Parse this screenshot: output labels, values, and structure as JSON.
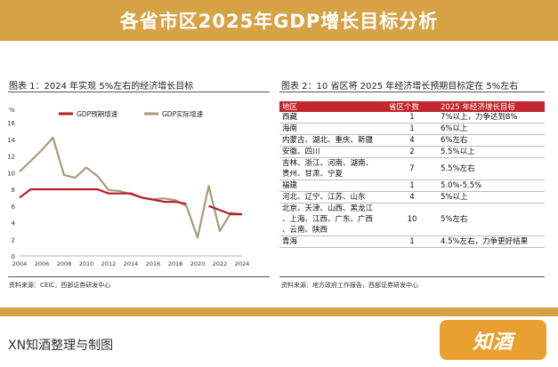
{
  "banner": {
    "title": "各省市区2025年GDP增长目标分析"
  },
  "fig1": {
    "title": "图表 1：2024 年实现 5%左右的经济增长目标",
    "source": "资料来源：CEIC，西部证券研发中心"
  },
  "fig2": {
    "title": "图表 2：10 省区将 2025 年经济增长预期目标定在 5%左右",
    "source": "资料来源：地方政府工作报告，西部证券研发中心"
  },
  "chart_data": {
    "type": "line",
    "title": "",
    "ylabel": "%",
    "xlabel": "",
    "xlim": [
      2004,
      2024
    ],
    "ylim": [
      0,
      16
    ],
    "xticks": [
      "2004",
      "2006",
      "2008",
      "2010",
      "2012",
      "2014",
      "2016",
      "2018",
      "2020",
      "2022",
      "2024"
    ],
    "yticks": [
      "0",
      "2",
      "4",
      "6",
      "8",
      "10",
      "12",
      "14",
      "16"
    ],
    "legend_position": "top",
    "series": [
      {
        "name": "GDP预期增速",
        "color": "#b81c25",
        "x": [
          2004,
          2005,
          2006,
          2007,
          2008,
          2009,
          2010,
          2011,
          2012,
          2013,
          2014,
          2015,
          2016,
          2017,
          2018,
          2019,
          2020,
          2021,
          2022,
          2023,
          2024
        ],
        "values": [
          7,
          8,
          8,
          8,
          8,
          8,
          8,
          8,
          7.5,
          7.5,
          7.5,
          7,
          6.75,
          6.5,
          6.5,
          6.25,
          null,
          6,
          5.5,
          5,
          5
        ]
      },
      {
        "name": "GDP实际增速",
        "color": "#a89a7c",
        "x": [
          2004,
          2005,
          2006,
          2007,
          2008,
          2009,
          2010,
          2011,
          2012,
          2013,
          2014,
          2015,
          2016,
          2017,
          2018,
          2019,
          2020,
          2021,
          2022,
          2023,
          2024
        ],
        "values": [
          10.1,
          11.4,
          12.7,
          14.2,
          9.7,
          9.4,
          10.6,
          9.6,
          7.9,
          7.8,
          7.4,
          7.0,
          6.8,
          6.9,
          6.7,
          6.0,
          2.2,
          8.4,
          3.0,
          5.2,
          5.0
        ]
      }
    ]
  },
  "table": {
    "headers": [
      "地区",
      "省区个数",
      "2025 年经济增长目标"
    ],
    "rows": [
      [
        "西藏",
        "1",
        "7%以上，力争达到8%"
      ],
      [
        "海南",
        "1",
        "6%以上"
      ],
      [
        "内蒙古、湖北、重庆、新疆",
        "4",
        "6%左右"
      ],
      [
        "安徽、四川",
        "2",
        "5.5%以上"
      ],
      [
        "吉林、浙江、河南、湖南、\n贵州、甘肃、宁夏",
        "7",
        "5.5%左右"
      ],
      [
        "福建",
        "1",
        "5.0%-5.5%"
      ],
      [
        "河北、辽宁、江苏、山东",
        "4",
        "5%以上"
      ],
      [
        "北京、天津、山西、黑龙江\n、上海、江西、广东、广西\n、云南、陕西",
        "10",
        "5%左右"
      ],
      [
        "青海",
        "1",
        "4.5%左右，力争更好结果"
      ]
    ]
  },
  "footer": {
    "text": "XN知酒整理与制图",
    "logo": "知酒"
  }
}
